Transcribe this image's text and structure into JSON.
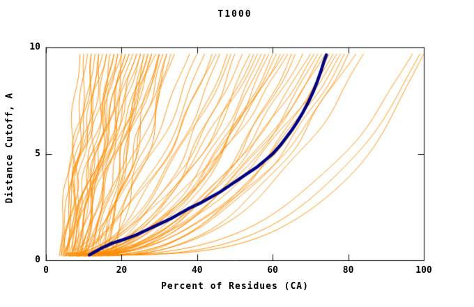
{
  "chart_data": {
    "type": "line",
    "title": "T1000",
    "xlabel": "Percent of Residues (CA)",
    "ylabel": "Distance Cutoff, A",
    "xlim": [
      0,
      100
    ],
    "ylim": [
      0,
      10
    ],
    "x_ticks": [
      0,
      20,
      40,
      60,
      80,
      100
    ],
    "y_ticks": [
      0,
      5,
      10
    ],
    "grid": false,
    "legend": "none",
    "colors": {
      "model_curves": "#ff8c00",
      "highlight_curve": "#000080",
      "axis": "#000000",
      "background": "#ffffff"
    },
    "y_curve_start_top": 9.7,
    "highlight_series": {
      "name": "selected-model",
      "points": [
        [
          11.5,
          0.25
        ],
        [
          13,
          0.4
        ],
        [
          15,
          0.6
        ],
        [
          17.5,
          0.8
        ],
        [
          21,
          1.0
        ],
        [
          24,
          1.2
        ],
        [
          27,
          1.45
        ],
        [
          30,
          1.7
        ],
        [
          33,
          1.95
        ],
        [
          35.5,
          2.2
        ],
        [
          38,
          2.45
        ],
        [
          41,
          2.7
        ],
        [
          43.5,
          2.95
        ],
        [
          46,
          3.2
        ],
        [
          48.5,
          3.5
        ],
        [
          51,
          3.8
        ],
        [
          53.5,
          4.1
        ],
        [
          56,
          4.4
        ],
        [
          58,
          4.7
        ],
        [
          60,
          5.0
        ],
        [
          62,
          5.4
        ],
        [
          63.5,
          5.75
        ],
        [
          65,
          6.1
        ],
        [
          66.5,
          6.5
        ],
        [
          68,
          6.95
        ],
        [
          69.5,
          7.45
        ],
        [
          70.8,
          7.95
        ],
        [
          71.8,
          8.4
        ],
        [
          72.8,
          8.9
        ],
        [
          73.5,
          9.3
        ],
        [
          74.2,
          9.65
        ]
      ]
    },
    "background_series": {
      "name": "all-models",
      "param_format": [
        "x_at_bottom",
        "x_at_top",
        "shape_exponent",
        "wiggle_amp",
        "wiggle_freq",
        "wiggle_phase",
        "y_start"
      ],
      "curve_params": [
        [
          3.5,
          9,
          1.0,
          0.8,
          1.5,
          0.3,
          0.2
        ],
        [
          4,
          11,
          0.9,
          1.2,
          1.1,
          2.1,
          0.25
        ],
        [
          4.5,
          13,
          1.1,
          0.6,
          1.8,
          4.0,
          0.2
        ],
        [
          5,
          10,
          0.8,
          1.5,
          0.9,
          1.0,
          0.3
        ],
        [
          5.5,
          15,
          1.2,
          1.0,
          1.4,
          5.2,
          0.2
        ],
        [
          6,
          12,
          1.0,
          2.0,
          0.7,
          2.8,
          0.35
        ],
        [
          6.5,
          17,
          0.9,
          1.3,
          1.6,
          0.9,
          0.2
        ],
        [
          7,
          14,
          1.3,
          0.7,
          2.0,
          3.3,
          0.25
        ],
        [
          7.5,
          19,
          1.0,
          1.8,
          1.2,
          1.7,
          0.3
        ],
        [
          8,
          16,
          0.85,
          1.1,
          1.5,
          4.6,
          0.2
        ],
        [
          8.5,
          21,
          1.1,
          0.9,
          1.9,
          0.5,
          0.4
        ],
        [
          9,
          18,
          0.95,
          1.6,
          1.0,
          2.4,
          0.2
        ],
        [
          9.5,
          23,
          1.2,
          1.2,
          1.3,
          5.8,
          0.3
        ],
        [
          10,
          20,
          1.0,
          2.2,
          0.8,
          1.2,
          0.25
        ],
        [
          4,
          16,
          1.15,
          1.4,
          1.7,
          3.9,
          0.2
        ],
        [
          5,
          18,
          0.9,
          0.8,
          2.1,
          0.2,
          0.3
        ],
        [
          6,
          22,
          1.05,
          1.7,
          1.1,
          2.0,
          0.2
        ],
        [
          7,
          25,
          0.95,
          1.0,
          1.6,
          4.4,
          0.35
        ],
        [
          8,
          24,
          1.1,
          1.3,
          1.2,
          1.5,
          0.2
        ],
        [
          9,
          27,
          1.0,
          0.6,
          1.9,
          3.0,
          0.3
        ],
        [
          10,
          26,
          0.9,
          1.9,
          0.9,
          0.7,
          0.2
        ],
        [
          11,
          29,
          1.2,
          1.1,
          1.4,
          5.0,
          0.25
        ],
        [
          12,
          28,
          1.0,
          1.5,
          1.1,
          2.6,
          0.3
        ],
        [
          13,
          31,
          0.85,
          0.9,
          1.8,
          0.4,
          0.2
        ],
        [
          14,
          30,
          1.1,
          1.2,
          1.3,
          3.6,
          0.35
        ],
        [
          15,
          32,
          0.95,
          2.0,
          0.8,
          1.9,
          0.2
        ],
        [
          5.5,
          20,
          1.05,
          1.4,
          1.5,
          4.8,
          0.25
        ],
        [
          6.5,
          19,
          0.9,
          0.7,
          2.2,
          1.1,
          0.2
        ],
        [
          7.5,
          22,
          1.15,
          1.6,
          1.0,
          2.9,
          0.3
        ],
        [
          8.5,
          25,
          1.0,
          1.0,
          1.7,
          5.5,
          0.2
        ],
        [
          9.5,
          21,
          0.9,
          1.8,
          1.2,
          0.8,
          0.25
        ],
        [
          10.5,
          24,
          1.1,
          1.2,
          1.6,
          3.2,
          0.3
        ],
        [
          11.5,
          27,
          1.0,
          0.8,
          2.0,
          1.4,
          0.2
        ],
        [
          12.5,
          30,
          0.95,
          1.5,
          1.1,
          4.1,
          0.25
        ],
        [
          13.5,
          28,
          1.2,
          1.1,
          1.5,
          2.2,
          0.3
        ],
        [
          14.5,
          32,
          1.0,
          0.9,
          1.8,
          5.9,
          0.2
        ],
        [
          4.5,
          14,
          0.8,
          2.3,
          0.9,
          0.6,
          0.3
        ],
        [
          5,
          12,
          1.1,
          1.7,
          1.3,
          3.7,
          0.2
        ],
        [
          16,
          30,
          1.0,
          1.3,
          1.2,
          1.8,
          0.4
        ],
        [
          17,
          33,
          0.9,
          1.0,
          1.6,
          4.3,
          0.3
        ],
        [
          18,
          34,
          1.05,
          1.6,
          1.0,
          2.5,
          0.25
        ],
        [
          15,
          26,
          1.1,
          0.7,
          1.9,
          0.9,
          0.2
        ],
        [
          4,
          38,
          0.6,
          0.8,
          1.2,
          1.0,
          0.25
        ],
        [
          5,
          42,
          0.55,
          1.0,
          0.9,
          2.7,
          0.2
        ],
        [
          6,
          46,
          0.5,
          0.6,
          1.5,
          4.2,
          0.3
        ],
        [
          7,
          40,
          0.65,
          1.2,
          1.1,
          0.5,
          0.2
        ],
        [
          8,
          50,
          0.45,
          0.9,
          1.4,
          3.1,
          0.25
        ],
        [
          9,
          44,
          0.6,
          0.7,
          1.7,
          5.3,
          0.2
        ],
        [
          10,
          54,
          0.5,
          1.1,
          1.0,
          1.6,
          0.3
        ],
        [
          11,
          48,
          0.55,
          0.8,
          1.3,
          2.3,
          0.2
        ],
        [
          12,
          58,
          0.45,
          1.3,
          0.8,
          4.7,
          0.25
        ],
        [
          4.5,
          52,
          0.5,
          0.6,
          1.6,
          0.3,
          0.2
        ],
        [
          5.5,
          56,
          0.55,
          1.0,
          1.2,
          3.5,
          0.3
        ],
        [
          6.5,
          60,
          0.45,
          0.8,
          1.5,
          1.3,
          0.2
        ],
        [
          7.5,
          62,
          0.5,
          1.2,
          0.9,
          5.1,
          0.25
        ],
        [
          8.5,
          64,
          0.55,
          0.7,
          1.8,
          2.0,
          0.2
        ],
        [
          9.5,
          66,
          0.45,
          1.0,
          1.1,
          4.0,
          0.3
        ],
        [
          10.5,
          68,
          0.5,
          0.9,
          1.4,
          0.8,
          0.2
        ],
        [
          5,
          45,
          0.6,
          1.1,
          1.0,
          2.9,
          0.25
        ],
        [
          6,
          55,
          0.5,
          0.7,
          1.6,
          5.6,
          0.2
        ],
        [
          7,
          63,
          0.55,
          1.0,
          1.2,
          1.1,
          0.3
        ],
        [
          8,
          59,
          0.45,
          0.8,
          1.5,
          3.8,
          0.2
        ],
        [
          9,
          49,
          0.6,
          1.2,
          0.9,
          0.2,
          0.25
        ],
        [
          10,
          57,
          0.5,
          0.6,
          1.7,
          2.6,
          0.2
        ],
        [
          11,
          61,
          0.55,
          1.0,
          1.1,
          4.9,
          0.3
        ],
        [
          12,
          65,
          0.45,
          0.8,
          1.4,
          1.7,
          0.2
        ],
        [
          9,
          70,
          0.5,
          0.7,
          1.2,
          0.6,
          0.25
        ],
        [
          10,
          72,
          0.45,
          0.9,
          1.0,
          2.2,
          0.2
        ],
        [
          11,
          74,
          0.5,
          0.6,
          1.5,
          4.5,
          0.3
        ],
        [
          12,
          76,
          0.42,
          1.0,
          1.1,
          1.4,
          0.2
        ],
        [
          13,
          78,
          0.48,
          0.8,
          1.3,
          3.3,
          0.25
        ],
        [
          14,
          80,
          0.4,
          0.7,
          1.6,
          5.7,
          0.2
        ],
        [
          15,
          73,
          0.52,
          1.1,
          0.9,
          0.9,
          0.3
        ],
        [
          16,
          75,
          0.45,
          0.6,
          1.4,
          2.8,
          0.2
        ],
        [
          10,
          77,
          0.5,
          0.9,
          1.2,
          4.1,
          0.25
        ],
        [
          11,
          79,
          0.42,
          0.7,
          1.5,
          1.2,
          0.2
        ],
        [
          12,
          82,
          0.48,
          1.0,
          1.0,
          3.0,
          0.3
        ],
        [
          13,
          84,
          0.4,
          0.8,
          1.3,
          5.4,
          0.2
        ],
        [
          14,
          71,
          0.55,
          0.6,
          1.7,
          0.4,
          0.25
        ],
        [
          8,
          99,
          0.3,
          0.5,
          1.0,
          1.5,
          0.2
        ],
        [
          10,
          100,
          0.27,
          0.7,
          0.8,
          3.9,
          0.25
        ],
        [
          6,
          97,
          0.33,
          0.6,
          1.2,
          0.7,
          0.2
        ]
      ]
    }
  }
}
